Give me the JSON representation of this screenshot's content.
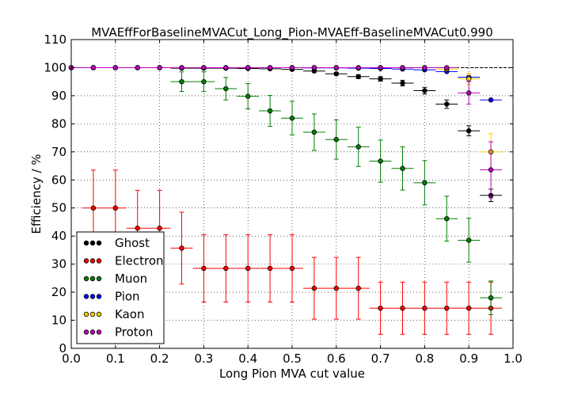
{
  "chart_data": {
    "type": "scatter",
    "title": "MVAEffForBaselineMVACut_Long_Pion-MVAEff-BaselineMVACut0.990",
    "xlabel": "Long Pion MVA cut value",
    "ylabel": "Efficiency / %",
    "xlim": [
      0.0,
      1.0
    ],
    "ylim": [
      0,
      110
    ],
    "x_ticks": [
      "0.0",
      "0.1",
      "0.2",
      "0.3",
      "0.4",
      "0.5",
      "0.6",
      "0.7",
      "0.8",
      "0.9",
      "1.0"
    ],
    "y_ticks": [
      "0",
      "10",
      "20",
      "30",
      "40",
      "50",
      "60",
      "70",
      "80",
      "90",
      "100",
      "110"
    ],
    "grid": true,
    "reference_line_y": 100,
    "legend_position": "lower-left",
    "series": [
      {
        "name": "Ghost",
        "color": "#000000",
        "points": [
          {
            "x": 0.0,
            "y": 100,
            "xerr": 0.025,
            "yerr": 0
          },
          {
            "x": 0.05,
            "y": 100,
            "xerr": 0.025,
            "yerr": 0
          },
          {
            "x": 0.1,
            "y": 100,
            "xerr": 0.025,
            "yerr": 0
          },
          {
            "x": 0.15,
            "y": 100,
            "xerr": 0.025,
            "yerr": 0
          },
          {
            "x": 0.2,
            "y": 100,
            "xerr": 0.025,
            "yerr": 0
          },
          {
            "x": 0.25,
            "y": 99.8,
            "xerr": 0.025,
            "yerr": 0.2
          },
          {
            "x": 0.3,
            "y": 99.8,
            "xerr": 0.025,
            "yerr": 0.2
          },
          {
            "x": 0.35,
            "y": 99.8,
            "xerr": 0.025,
            "yerr": 0.2
          },
          {
            "x": 0.4,
            "y": 99.7,
            "xerr": 0.025,
            "yerr": 0.2
          },
          {
            "x": 0.45,
            "y": 99.6,
            "xerr": 0.025,
            "yerr": 0.2
          },
          {
            "x": 0.5,
            "y": 99.4,
            "xerr": 0.025,
            "yerr": 0.3
          },
          {
            "x": 0.55,
            "y": 98.8,
            "xerr": 0.025,
            "yerr": 0.4
          },
          {
            "x": 0.6,
            "y": 97.8,
            "xerr": 0.025,
            "yerr": 0.5
          },
          {
            "x": 0.65,
            "y": 96.8,
            "xerr": 0.025,
            "yerr": 0.7
          },
          {
            "x": 0.7,
            "y": 96.0,
            "xerr": 0.025,
            "yerr": 0.8
          },
          {
            "x": 0.75,
            "y": 94.5,
            "xerr": 0.025,
            "yerr": 1.0
          },
          {
            "x": 0.8,
            "y": 91.8,
            "xerr": 0.025,
            "yerr": 1.2
          },
          {
            "x": 0.85,
            "y": 87.0,
            "xerr": 0.025,
            "yerr": 1.5
          },
          {
            "x": 0.9,
            "y": 77.5,
            "xerr": 0.025,
            "yerr": 1.8
          },
          {
            "x": 0.95,
            "y": 54.5,
            "xerr": 0.025,
            "yerr": 2.2
          }
        ]
      },
      {
        "name": "Electron",
        "color": "#ff0000",
        "points": [
          {
            "x": 0.05,
            "y": 50.0,
            "xerr": 0.025,
            "yerr": 13.5
          },
          {
            "x": 0.1,
            "y": 50.0,
            "xerr": 0.025,
            "yerr": 13.5
          },
          {
            "x": 0.15,
            "y": 42.8,
            "xerr": 0.025,
            "yerr": 13.5
          },
          {
            "x": 0.2,
            "y": 42.8,
            "xerr": 0.025,
            "yerr": 13.5
          },
          {
            "x": 0.25,
            "y": 35.7,
            "xerr": 0.025,
            "yerr": 12.8
          },
          {
            "x": 0.3,
            "y": 28.5,
            "xerr": 0.025,
            "yerr": 12.0
          },
          {
            "x": 0.35,
            "y": 28.5,
            "xerr": 0.025,
            "yerr": 12.0
          },
          {
            "x": 0.4,
            "y": 28.5,
            "xerr": 0.025,
            "yerr": 12.0
          },
          {
            "x": 0.45,
            "y": 28.5,
            "xerr": 0.025,
            "yerr": 12.0
          },
          {
            "x": 0.5,
            "y": 28.5,
            "xerr": 0.025,
            "yerr": 12.0
          },
          {
            "x": 0.55,
            "y": 21.4,
            "xerr": 0.025,
            "yerr": 11.0
          },
          {
            "x": 0.6,
            "y": 21.4,
            "xerr": 0.025,
            "yerr": 11.0
          },
          {
            "x": 0.65,
            "y": 21.4,
            "xerr": 0.025,
            "yerr": 11.0
          },
          {
            "x": 0.7,
            "y": 14.3,
            "xerr": 0.025,
            "yerr": 9.3
          },
          {
            "x": 0.75,
            "y": 14.3,
            "xerr": 0.025,
            "yerr": 9.3
          },
          {
            "x": 0.8,
            "y": 14.3,
            "xerr": 0.025,
            "yerr": 9.3
          },
          {
            "x": 0.85,
            "y": 14.3,
            "xerr": 0.025,
            "yerr": 9.3
          },
          {
            "x": 0.9,
            "y": 14.3,
            "xerr": 0.025,
            "yerr": 9.3
          },
          {
            "x": 0.95,
            "y": 14.3,
            "xerr": 0.025,
            "yerr": 9.3
          }
        ]
      },
      {
        "name": "Muon",
        "color": "#008000",
        "points": [
          {
            "x": 0.25,
            "y": 95.0,
            "xerr": 0.025,
            "yerr": 3.5
          },
          {
            "x": 0.3,
            "y": 95.0,
            "xerr": 0.025,
            "yerr": 3.5
          },
          {
            "x": 0.35,
            "y": 92.5,
            "xerr": 0.025,
            "yerr": 4.0
          },
          {
            "x": 0.4,
            "y": 89.8,
            "xerr": 0.025,
            "yerr": 4.5
          },
          {
            "x": 0.45,
            "y": 84.6,
            "xerr": 0.025,
            "yerr": 5.5
          },
          {
            "x": 0.5,
            "y": 82.0,
            "xerr": 0.025,
            "yerr": 6.0
          },
          {
            "x": 0.55,
            "y": 77.0,
            "xerr": 0.025,
            "yerr": 6.5
          },
          {
            "x": 0.6,
            "y": 74.4,
            "xerr": 0.025,
            "yerr": 7.0
          },
          {
            "x": 0.65,
            "y": 71.8,
            "xerr": 0.025,
            "yerr": 7.0
          },
          {
            "x": 0.7,
            "y": 66.7,
            "xerr": 0.025,
            "yerr": 7.5
          },
          {
            "x": 0.75,
            "y": 64.1,
            "xerr": 0.025,
            "yerr": 7.7
          },
          {
            "x": 0.8,
            "y": 59.0,
            "xerr": 0.025,
            "yerr": 7.9
          },
          {
            "x": 0.85,
            "y": 46.2,
            "xerr": 0.025,
            "yerr": 8.0
          },
          {
            "x": 0.9,
            "y": 38.5,
            "xerr": 0.025,
            "yerr": 7.8
          },
          {
            "x": 0.95,
            "y": 18.0,
            "xerr": 0.025,
            "yerr": 6.0
          }
        ]
      },
      {
        "name": "Pion",
        "color": "#0000ff",
        "points": [
          {
            "x": 0.0,
            "y": 100,
            "xerr": 0.025,
            "yerr": 0
          },
          {
            "x": 0.05,
            "y": 100,
            "xerr": 0.025,
            "yerr": 0
          },
          {
            "x": 0.1,
            "y": 100,
            "xerr": 0.025,
            "yerr": 0
          },
          {
            "x": 0.15,
            "y": 100,
            "xerr": 0.025,
            "yerr": 0
          },
          {
            "x": 0.2,
            "y": 100,
            "xerr": 0.025,
            "yerr": 0
          },
          {
            "x": 0.25,
            "y": 100,
            "xerr": 0.025,
            "yerr": 0
          },
          {
            "x": 0.3,
            "y": 100,
            "xerr": 0.025,
            "yerr": 0
          },
          {
            "x": 0.35,
            "y": 100,
            "xerr": 0.025,
            "yerr": 0
          },
          {
            "x": 0.4,
            "y": 100,
            "xerr": 0.025,
            "yerr": 0
          },
          {
            "x": 0.45,
            "y": 100,
            "xerr": 0.025,
            "yerr": 0
          },
          {
            "x": 0.5,
            "y": 100,
            "xerr": 0.025,
            "yerr": 0
          },
          {
            "x": 0.55,
            "y": 99.9,
            "xerr": 0.025,
            "yerr": 0
          },
          {
            "x": 0.6,
            "y": 99.9,
            "xerr": 0.025,
            "yerr": 0
          },
          {
            "x": 0.65,
            "y": 99.8,
            "xerr": 0.025,
            "yerr": 0
          },
          {
            "x": 0.7,
            "y": 99.7,
            "xerr": 0.025,
            "yerr": 0
          },
          {
            "x": 0.75,
            "y": 99.5,
            "xerr": 0.025,
            "yerr": 0
          },
          {
            "x": 0.8,
            "y": 99.2,
            "xerr": 0.025,
            "yerr": 0
          },
          {
            "x": 0.85,
            "y": 98.6,
            "xerr": 0.025,
            "yerr": 0.1
          },
          {
            "x": 0.9,
            "y": 96.6,
            "xerr": 0.025,
            "yerr": 0.2
          },
          {
            "x": 0.95,
            "y": 88.5,
            "xerr": 0.025,
            "yerr": 0.3
          }
        ]
      },
      {
        "name": "Kaon",
        "color": "#ffcc00",
        "points": [
          {
            "x": 0.0,
            "y": 100,
            "xerr": 0.025,
            "yerr": 0
          },
          {
            "x": 0.05,
            "y": 100,
            "xerr": 0.025,
            "yerr": 0
          },
          {
            "x": 0.1,
            "y": 100,
            "xerr": 0.025,
            "yerr": 0
          },
          {
            "x": 0.15,
            "y": 100,
            "xerr": 0.025,
            "yerr": 0
          },
          {
            "x": 0.2,
            "y": 100,
            "xerr": 0.025,
            "yerr": 0
          },
          {
            "x": 0.25,
            "y": 100,
            "xerr": 0.025,
            "yerr": 0
          },
          {
            "x": 0.3,
            "y": 100,
            "xerr": 0.025,
            "yerr": 0
          },
          {
            "x": 0.35,
            "y": 100,
            "xerr": 0.025,
            "yerr": 0
          },
          {
            "x": 0.4,
            "y": 100,
            "xerr": 0.025,
            "yerr": 0
          },
          {
            "x": 0.45,
            "y": 100,
            "xerr": 0.025,
            "yerr": 0
          },
          {
            "x": 0.5,
            "y": 100,
            "xerr": 0.025,
            "yerr": 0
          },
          {
            "x": 0.55,
            "y": 100,
            "xerr": 0.025,
            "yerr": 0
          },
          {
            "x": 0.6,
            "y": 100,
            "xerr": 0.025,
            "yerr": 0
          },
          {
            "x": 0.65,
            "y": 100,
            "xerr": 0.025,
            "yerr": 0
          },
          {
            "x": 0.7,
            "y": 100,
            "xerr": 0.025,
            "yerr": 0
          },
          {
            "x": 0.75,
            "y": 100,
            "xerr": 0.025,
            "yerr": 0
          },
          {
            "x": 0.8,
            "y": 100,
            "xerr": 0.025,
            "yerr": 0
          },
          {
            "x": 0.85,
            "y": 99.5,
            "xerr": 0.025,
            "yerr": 0.5
          },
          {
            "x": 0.9,
            "y": 96.0,
            "xerr": 0.025,
            "yerr": 2.0
          },
          {
            "x": 0.95,
            "y": 70.0,
            "xerr": 0.025,
            "yerr": 6.5
          }
        ]
      },
      {
        "name": "Proton",
        "color": "#bf00bf",
        "points": [
          {
            "x": 0.0,
            "y": 100,
            "xerr": 0.025,
            "yerr": 0
          },
          {
            "x": 0.05,
            "y": 100,
            "xerr": 0.025,
            "yerr": 0
          },
          {
            "x": 0.1,
            "y": 100,
            "xerr": 0.025,
            "yerr": 0
          },
          {
            "x": 0.15,
            "y": 100,
            "xerr": 0.025,
            "yerr": 0
          },
          {
            "x": 0.2,
            "y": 100,
            "xerr": 0.025,
            "yerr": 0
          },
          {
            "x": 0.25,
            "y": 100,
            "xerr": 0.025,
            "yerr": 0
          },
          {
            "x": 0.3,
            "y": 100,
            "xerr": 0.025,
            "yerr": 0
          },
          {
            "x": 0.35,
            "y": 100,
            "xerr": 0.025,
            "yerr": 0
          },
          {
            "x": 0.4,
            "y": 100,
            "xerr": 0.025,
            "yerr": 0
          },
          {
            "x": 0.45,
            "y": 100,
            "xerr": 0.025,
            "yerr": 0
          },
          {
            "x": 0.5,
            "y": 100,
            "xerr": 0.025,
            "yerr": 0
          },
          {
            "x": 0.55,
            "y": 100,
            "xerr": 0.025,
            "yerr": 0
          },
          {
            "x": 0.6,
            "y": 100,
            "xerr": 0.025,
            "yerr": 0
          },
          {
            "x": 0.65,
            "y": 100,
            "xerr": 0.025,
            "yerr": 0
          },
          {
            "x": 0.7,
            "y": 100,
            "xerr": 0.025,
            "yerr": 0
          },
          {
            "x": 0.75,
            "y": 100,
            "xerr": 0.025,
            "yerr": 0
          },
          {
            "x": 0.8,
            "y": 100,
            "xerr": 0.025,
            "yerr": 0
          },
          {
            "x": 0.85,
            "y": 100,
            "xerr": 0.025,
            "yerr": 0
          },
          {
            "x": 0.9,
            "y": 91.0,
            "xerr": 0.025,
            "yerr": 4.0
          },
          {
            "x": 0.95,
            "y": 63.6,
            "xerr": 0.025,
            "yerr": 10.0
          }
        ]
      }
    ]
  }
}
